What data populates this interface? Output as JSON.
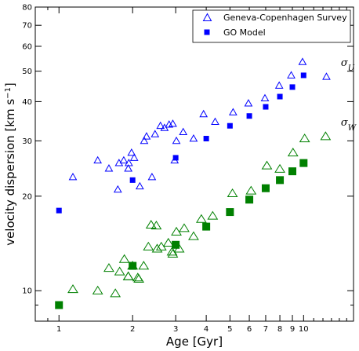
{
  "chart_data": {
    "type": "scatter",
    "xlabel": "Age [Gyr]",
    "ylabel_main": "velocity dispersion [km s",
    "ylabel_sup": "−1",
    "ylabel_close": "]",
    "x_scale": "log",
    "y_scale": "log",
    "xlim": [
      0.8,
      16
    ],
    "ylim": [
      8,
      80
    ],
    "x_ticks": [
      1,
      2,
      3,
      4,
      5,
      6,
      7,
      8,
      9,
      10
    ],
    "y_ticks": [
      10,
      20,
      30,
      40,
      50,
      60,
      70,
      80
    ],
    "legend": {
      "placement": "top-right",
      "entries": [
        {
          "label": "Geneva-Copenhagen Survey",
          "marker": "open-triangle",
          "color": "#0000ff"
        },
        {
          "label": "GO Model",
          "marker": "filled-square",
          "color": "#0000ff"
        }
      ]
    },
    "annotations": [
      {
        "base": "σ",
        "sub": "U",
        "x": 14.2,
        "y": 52
      },
      {
        "base": "σ",
        "sub": "W",
        "x": 14.2,
        "y": 33.5
      }
    ],
    "series": [
      {
        "name": "Geneva-Copenhagen Survey σU",
        "marker": "open-triangle",
        "color": "#0000ff",
        "x": [
          1.14,
          1.44,
          1.6,
          1.76,
          1.84,
          1.93,
          2.03,
          1.98,
          2.23,
          2.28,
          2.47,
          2.6,
          2.7,
          2.82,
          2.92,
          3.02,
          3.22,
          3.55,
          3.9,
          4.35,
          5.15,
          5.95,
          6.95,
          7.95,
          8.9,
          9.9,
          12.4,
          1.74,
          1.92,
          2.14,
          2.4,
          2.97
        ],
        "y": [
          23,
          26,
          24.5,
          25.5,
          26,
          25.5,
          26.5,
          27.5,
          30,
          31,
          31.5,
          33.5,
          33,
          33.8,
          34,
          30,
          32,
          30.5,
          36.5,
          34.5,
          37,
          39.5,
          41,
          45,
          48.5,
          53.5,
          48,
          21,
          24.5,
          21.5,
          23,
          26
        ]
      },
      {
        "name": "GO Model σU",
        "marker": "filled-square",
        "color": "#0000ff",
        "x": [
          1.0,
          2.0,
          3.0,
          4.0,
          5.0,
          6.0,
          7.0,
          8.0,
          9.0,
          10.0
        ],
        "y": [
          18.0,
          22.5,
          26.5,
          30.5,
          33.5,
          36.0,
          38.5,
          41.5,
          44.5,
          48.5
        ]
      },
      {
        "name": "Geneva-Copenhagen Survey σW",
        "marker": "open-triangle",
        "color": "#008000",
        "x": [
          1.14,
          1.44,
          1.6,
          1.7,
          1.77,
          1.85,
          1.92,
          2.0,
          2.12,
          2.22,
          2.32,
          2.38,
          2.5,
          2.62,
          2.8,
          2.92,
          3.02,
          3.25,
          3.55,
          3.82,
          4.25,
          5.12,
          6.1,
          7.08,
          8.0,
          9.05,
          10.1,
          12.3,
          1.92,
          2.1,
          2.52,
          2.9,
          3.1
        ],
        "y": [
          10.1,
          10.0,
          11.8,
          9.8,
          11.5,
          12.6,
          11.1,
          12.0,
          10.9,
          12.0,
          13.8,
          16.2,
          16.1,
          13.8,
          14.2,
          13.1,
          15.4,
          15.8,
          14.9,
          16.9,
          17.3,
          20.4,
          20.8,
          25.0,
          24.4,
          27.5,
          30.5,
          31.0,
          11.1,
          11.0,
          13.6,
          13.3,
          13.6
        ]
      },
      {
        "name": "GO Model σW",
        "marker": "filled-square",
        "color": "#008000",
        "x": [
          1.0,
          2.0,
          3.0,
          4.0,
          5.0,
          6.0,
          7.0,
          8.0,
          9.0,
          10.0
        ],
        "y": [
          9.0,
          12.0,
          14.0,
          16.0,
          17.8,
          19.5,
          21.2,
          22.5,
          24.0,
          25.5
        ]
      }
    ]
  }
}
